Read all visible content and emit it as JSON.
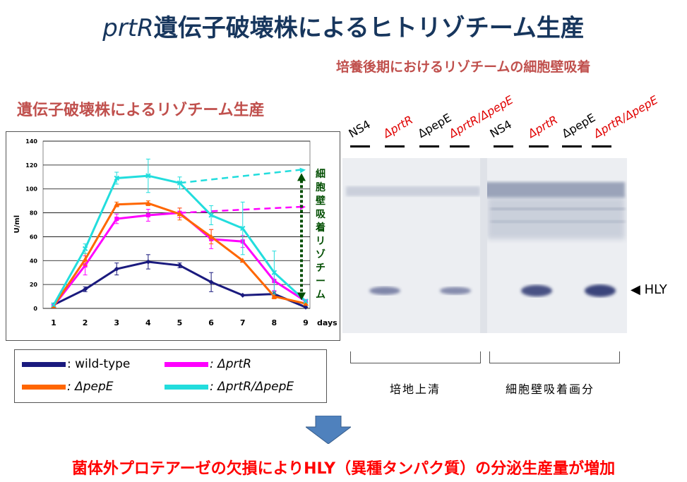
{
  "slide": {
    "title_italic": "prtR",
    "title_rest": "遺伝子破壊株によるヒトリゾチーム生産",
    "left_subtitle": "遺伝子破壊株によるリゾチーム生産",
    "right_subtitle": "培養後期におけるリゾチームの細胞壁吸着",
    "bottom_conclusion": "菌体外プロテアーゼの欠損によりHLY（異種タンパク質）の分泌生産量が増加"
  },
  "legend": [
    {
      "label": ": wild-type",
      "color": "#1a1a7e"
    },
    {
      "label": ": ΔprtR",
      "color": "#ff00ff"
    },
    {
      "label": ": ΔpepE",
      "color": "#ff6600"
    },
    {
      "label": ": ΔprtR/ΔpepE",
      "color": "#22dddd"
    }
  ],
  "chart_data": {
    "type": "line",
    "xlabel": "days",
    "ylabel": "U/ml",
    "x": [
      1,
      2,
      3,
      4,
      5,
      6,
      7,
      8,
      9
    ],
    "ylim": [
      0,
      140
    ],
    "yticks": [
      0,
      20,
      40,
      60,
      80,
      100,
      120,
      140
    ],
    "grid": true,
    "series": [
      {
        "name": "wild-type",
        "color": "#1a1a7e",
        "values": [
          3,
          16,
          33,
          39,
          36,
          22,
          11,
          12,
          1
        ],
        "errors": [
          0,
          2,
          5,
          6,
          2,
          8,
          0,
          2,
          0
        ]
      },
      {
        "name": "ΔprtR",
        "color": "#ff00ff",
        "values": [
          2,
          36,
          75,
          78,
          80,
          58,
          56,
          23,
          6
        ],
        "errors": [
          0,
          8,
          4,
          5,
          4,
          8,
          5,
          8,
          0
        ]
      },
      {
        "name": "ΔpepE",
        "color": "#ff6600",
        "values": [
          2,
          41,
          87,
          88,
          79,
          60,
          40,
          10,
          4
        ],
        "errors": [
          0,
          5,
          2,
          2,
          5,
          6,
          0,
          2,
          0
        ]
      },
      {
        "name": "ΔprtR/ΔpepE",
        "color": "#22dddd",
        "values": [
          3,
          50,
          109,
          111,
          105,
          78,
          67,
          30,
          6
        ],
        "errors": [
          0,
          4,
          5,
          14,
          5,
          8,
          22,
          18,
          0
        ]
      }
    ],
    "projections": [
      {
        "color": "#22dddd",
        "from": [
          5,
          105
        ],
        "to": [
          9,
          116
        ]
      },
      {
        "color": "#ff00ff",
        "from": [
          5,
          80
        ],
        "to": [
          9,
          85
        ]
      }
    ],
    "annotation": {
      "text": "細胞壁吸着リゾチーム",
      "color": "#004d00",
      "from": [
        9,
        112
      ],
      "to": [
        9,
        8
      ]
    }
  },
  "gel": {
    "lane_labels": [
      "NS4",
      "ΔprtR",
      "ΔpepE",
      "ΔprtR/ΔpepE",
      "NS4",
      "ΔprtR",
      "ΔpepE",
      "ΔprtR/ΔpepE"
    ],
    "lane_label_colors": [
      "#000000",
      "#e00000",
      "#000000",
      "#e00000",
      "#000000",
      "#e00000",
      "#000000",
      "#e00000"
    ],
    "band_marker": "HLY",
    "marker_icon": "triangle-left-icon",
    "group_labels": [
      "培地上清",
      "細胞壁吸着画分"
    ],
    "hly_band_intensity": [
      0,
      0.45,
      0,
      0.4,
      0,
      0.85,
      0,
      0.95
    ]
  },
  "arrow_icon": "down-arrow-icon"
}
